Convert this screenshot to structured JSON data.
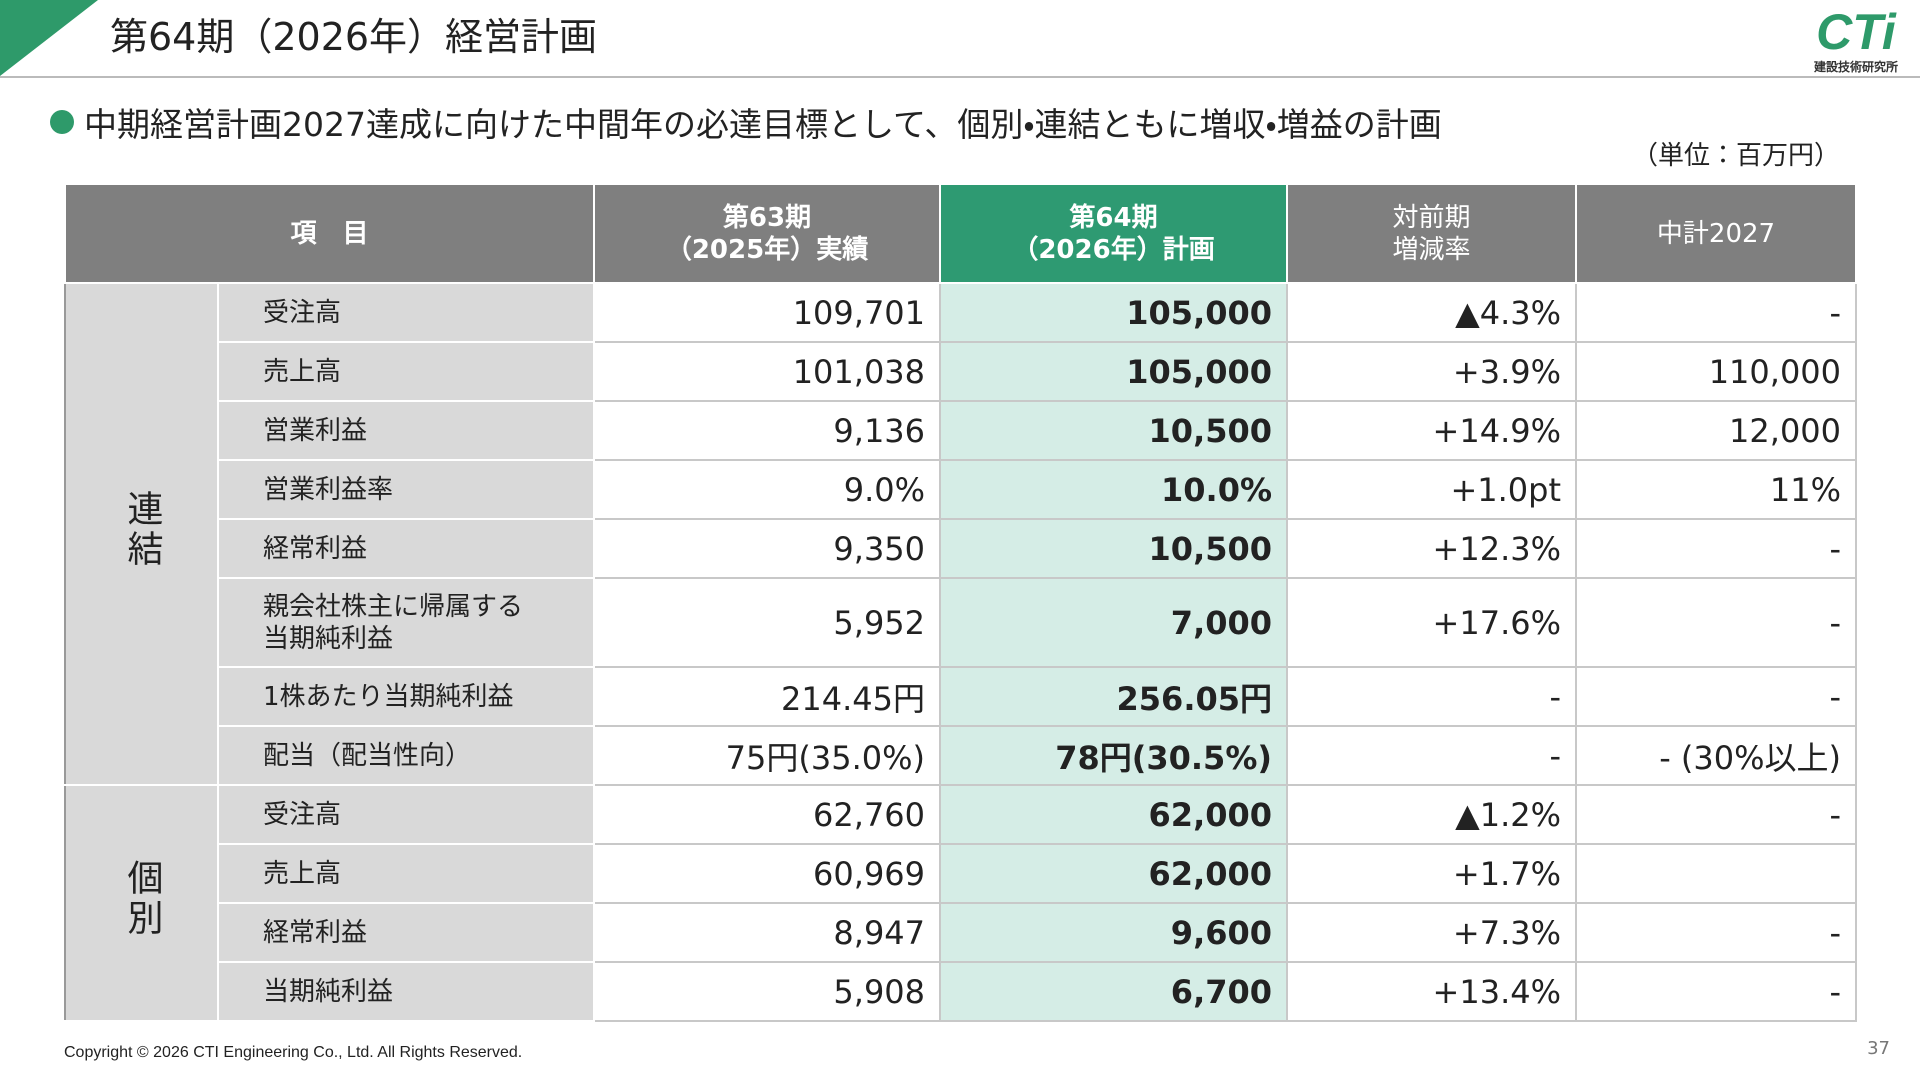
{
  "header": {
    "title": "第64期（2026年）経営計画",
    "logo": "CTi",
    "logo_sub": "建設技術研究所"
  },
  "bullet": "中期経営計画2027達成に向けた中間年の必達目標として、個別・連結ともに増収・増益の計画",
  "unit": "（単位：百万円）",
  "table": {
    "headers": [
      [
        "項　目"
      ],
      [
        "第63期",
        "（2025年）実績"
      ],
      [
        "第64期",
        "（2026年）計画"
      ],
      [
        "対前期",
        "増減率"
      ],
      [
        "中計2027"
      ]
    ],
    "groups": [
      {
        "label": "連結",
        "rows": [
          {
            "item": "受注高",
            "values": [
              "109,701",
              "105,000",
              "▲4.3%",
              "-"
            ]
          },
          {
            "item": "売上高",
            "values": [
              "101,038",
              "105,000",
              "+3.9%",
              "110,000"
            ]
          },
          {
            "item": "営業利益",
            "values": [
              "9,136",
              "10,500",
              "+14.9%",
              "12,000"
            ]
          },
          {
            "item": "営業利益率",
            "values": [
              "9.0%",
              "10.0%",
              "+1.0pt",
              "11%"
            ]
          },
          {
            "item": "経常利益",
            "values": [
              "9,350",
              "10,500",
              "+12.3%",
              "-"
            ]
          },
          {
            "item": [
              "親会社株主に帰属する",
              "当期純利益"
            ],
            "values": [
              "5,952",
              "7,000",
              "+17.6%",
              "-"
            ]
          },
          {
            "item": "1株あたり当期純利益",
            "values": [
              "214.45円",
              "256.05円",
              "-",
              "-"
            ]
          },
          {
            "item": "配当（配当性向）",
            "values": [
              "75円(35.0%)",
              "78円(30.5%)",
              "-",
              "- (30%以上)"
            ]
          }
        ]
      },
      {
        "label": "個別",
        "rows": [
          {
            "item": "受注高",
            "values": [
              "62,760",
              "62,000",
              "▲1.2%",
              "-"
            ]
          },
          {
            "item": "売上高",
            "values": [
              "60,969",
              "62,000",
              "+1.7%",
              null
            ]
          },
          {
            "item": "経常利益",
            "values": [
              "8,947",
              "9,600",
              "+7.3%",
              "-"
            ]
          },
          {
            "item": "当期純利益",
            "values": [
              "5,908",
              "6,700",
              "+13.4%",
              "-"
            ]
          }
        ]
      }
    ]
  },
  "footer": {
    "copyright": "Copyright © 2026 CTI Engineering Co., Ltd. All Rights Reserved.",
    "page": "37"
  }
}
